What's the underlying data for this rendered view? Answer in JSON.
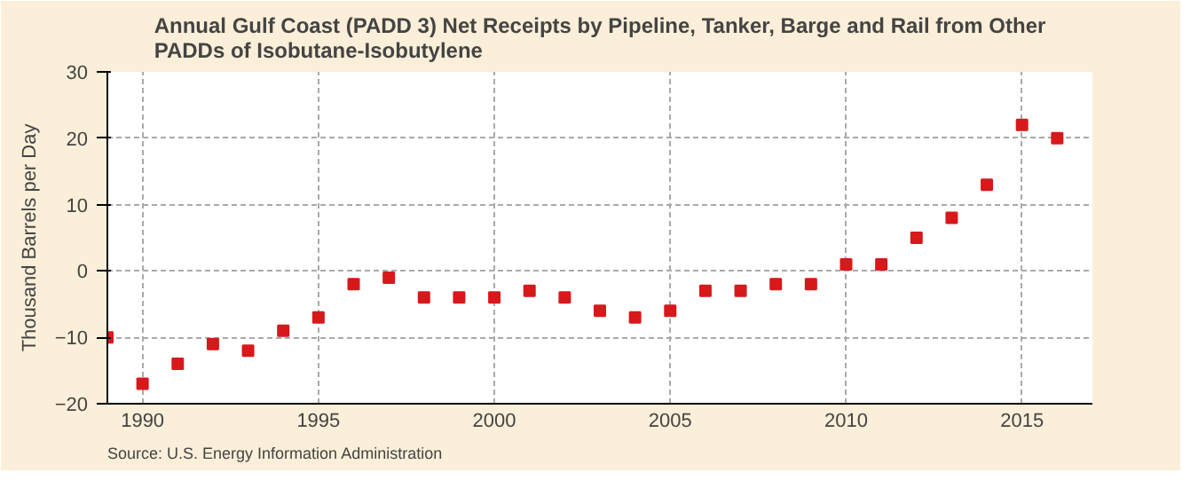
{
  "chart_data": {
    "type": "scatter",
    "title": "Annual Gulf Coast (PADD 3) Net Receipts by Pipeline, Tanker, Barge and Rail from Other\nPADDs of Isobutane-Isobutylene",
    "ylabel": "Thousand Barrels per Day",
    "x": [
      1989,
      1990,
      1991,
      1992,
      1993,
      1994,
      1995,
      1996,
      1997,
      1998,
      1999,
      2000,
      2001,
      2002,
      2003,
      2004,
      2005,
      2006,
      2007,
      2008,
      2009,
      2010,
      2011,
      2012,
      2013,
      2014,
      2015,
      2016
    ],
    "series": [
      {
        "color": "#d7191c",
        "values": [
          -10,
          -17,
          -14,
          -11,
          -12,
          -9,
          -7,
          -2,
          -1,
          -4,
          -4,
          -4,
          -3,
          -4,
          -6,
          -7,
          -6,
          -3,
          -3,
          -2,
          -2,
          1,
          1,
          5,
          8,
          13,
          22,
          20
        ]
      }
    ],
    "xlim": [
      1989,
      2017
    ],
    "xticks": [
      1990,
      1995,
      2000,
      2005,
      2010,
      2015
    ],
    "ylim": [
      -20,
      30
    ],
    "yticks": [
      -20,
      -10,
      0,
      10,
      20,
      30
    ],
    "grid": true,
    "marker": "square",
    "annotations": [
      "Source: U.S. Energy Information Administration"
    ]
  }
}
